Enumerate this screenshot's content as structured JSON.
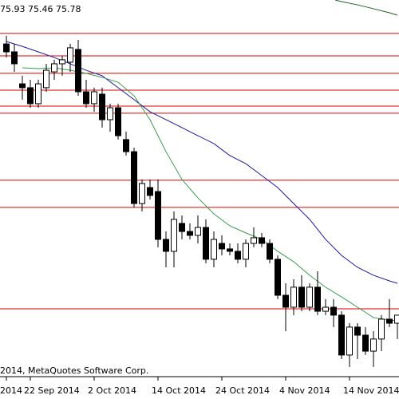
{
  "chart_data": {
    "type": "candlestick",
    "header": "75.93 75.46 75.78",
    "copyright": "2014, MetaQuotes Software Corp.",
    "categories": [
      "2014",
      null,
      null,
      "22 Sep 2014",
      null,
      null,
      null,
      null,
      null,
      null,
      null,
      "2 Oct 2014",
      null,
      null,
      null,
      null,
      null,
      null,
      null,
      "14 Oct 2014",
      null,
      null,
      null,
      null,
      null,
      null,
      null,
      "24 Oct 2014",
      null,
      null,
      null,
      null,
      null,
      null,
      null,
      "4 Nov 2014",
      null,
      null,
      null,
      null,
      null,
      null,
      null,
      "14 Nov 2014",
      null,
      null,
      null,
      null,
      null,
      null
    ],
    "open": [
      93.28,
      92.79,
      90.81,
      90.57,
      89.58,
      90.57,
      91.55,
      92.05,
      92.15,
      92.94,
      90.32,
      89.58,
      90.17,
      88.59,
      89.33,
      87.36,
      86.61,
      83.4,
      84.39,
      84.14,
      81.18,
      80.44,
      82.17,
      81.67,
      81.43,
      81.92,
      79.95,
      80.93,
      80.59,
      80.44,
      79.95,
      80.93,
      81.28,
      80.93,
      79.95,
      77.72,
      76.98,
      78.22,
      76.98,
      78.22,
      76.73,
      76.98,
      76.49,
      74.02,
      75.75,
      75.25,
      74.26,
      75.01,
      76.24,
      75.99
    ],
    "high": [
      93.78,
      93.28,
      91.31,
      91.06,
      91.06,
      92.05,
      92.3,
      92.54,
      93.28,
      93.53,
      91.06,
      90.57,
      90.57,
      89.58,
      89.58,
      87.85,
      86.86,
      84.89,
      84.89,
      84.89,
      81.67,
      82.91,
      82.66,
      82.17,
      82.66,
      82.42,
      81.67,
      81.43,
      80.93,
      80.93,
      81.18,
      81.92,
      81.58,
      81.18,
      80.19,
      78.46,
      78.71,
      78.96,
      78.46,
      79.2,
      77.48,
      77.48,
      76.73,
      75.99,
      75.99,
      75.75,
      75.5,
      76.49,
      77.48,
      76.49
    ],
    "low": [
      92.44,
      91.55,
      89.83,
      89.33,
      89.33,
      90.32,
      91.06,
      91.31,
      91.55,
      90.07,
      89.33,
      89.08,
      88.1,
      87.85,
      87.36,
      86.37,
      83.16,
      82.91,
      83.65,
      80.69,
      79.45,
      79.45,
      81.18,
      81.18,
      80.93,
      79.7,
      79.45,
      80.19,
      80.19,
      79.7,
      79.45,
      80.69,
      80.69,
      79.7,
      77.48,
      75.5,
      76.49,
      76.73,
      76.73,
      76.49,
      76.49,
      75.75,
      73.77,
      73.28,
      73.77,
      74.02,
      73.28,
      74.26,
      75.75,
      75.01
    ],
    "close": [
      92.79,
      92.05,
      90.57,
      89.58,
      90.81,
      91.65,
      92.05,
      92.3,
      93.04,
      90.32,
      89.58,
      90.32,
      88.59,
      89.33,
      87.6,
      86.61,
      83.4,
      84.64,
      83.9,
      81.18,
      80.44,
      82.42,
      81.67,
      81.43,
      81.92,
      79.95,
      81.18,
      80.59,
      80.44,
      79.95,
      80.93,
      81.28,
      80.93,
      79.95,
      77.72,
      76.98,
      78.22,
      76.98,
      78.22,
      76.73,
      76.98,
      76.49,
      74.02,
      75.75,
      75.25,
      74.26,
      75.01,
      76.24,
      75.99,
      76.49
    ],
    "up_color": "#ffffff",
    "down_color": "#000000",
    "wick_color": "#000000",
    "levels": [
      93.93,
      92.54,
      91.46,
      90.42,
      89.43,
      88.99,
      84.84,
      83.16,
      76.88
    ],
    "level_color": "#e00000",
    "series": [
      {
        "color": "#1a1aa0",
        "x": [
          0,
          2,
          4,
          6,
          8,
          10,
          12,
          14,
          16,
          18,
          20,
          22,
          24,
          26,
          28,
          30,
          32,
          34,
          36,
          38,
          40,
          42,
          44,
          46,
          48,
          49
        ],
        "values": [
          93.43,
          93.13,
          92.79,
          92.44,
          92.05,
          91.65,
          91.31,
          90.57,
          89.83,
          89.08,
          88.59,
          88.1,
          87.6,
          87.11,
          86.37,
          85.87,
          85.13,
          84.39,
          83.4,
          82.42,
          81.18,
          80.19,
          79.45,
          78.96,
          78.61,
          78.46
        ]
      },
      {
        "color": "#3a9a50",
        "x": [
          2,
          4,
          6,
          8,
          10,
          12,
          14,
          16,
          18,
          20,
          22,
          24,
          26,
          28,
          30,
          32,
          34,
          36,
          38,
          40,
          42,
          44,
          46,
          48,
          49
        ],
        "values": [
          91.8,
          91.75,
          91.8,
          91.65,
          91.46,
          91.21,
          90.91,
          90.07,
          88.59,
          86.61,
          84.89,
          83.75,
          82.76,
          82.02,
          81.58,
          81.18,
          80.44,
          79.8,
          78.96,
          78.22,
          77.62,
          76.98,
          76.34,
          76.19,
          76.14
        ]
      },
      {
        "color": "#1f5f1f",
        "x": [
          41.2,
          42,
          44,
          46,
          48,
          49
        ],
        "values": [
          96.0,
          95.9,
          95.7,
          95.46,
          95.21,
          95.06
        ]
      }
    ],
    "ylim": [
      72.78,
      96
    ]
  }
}
